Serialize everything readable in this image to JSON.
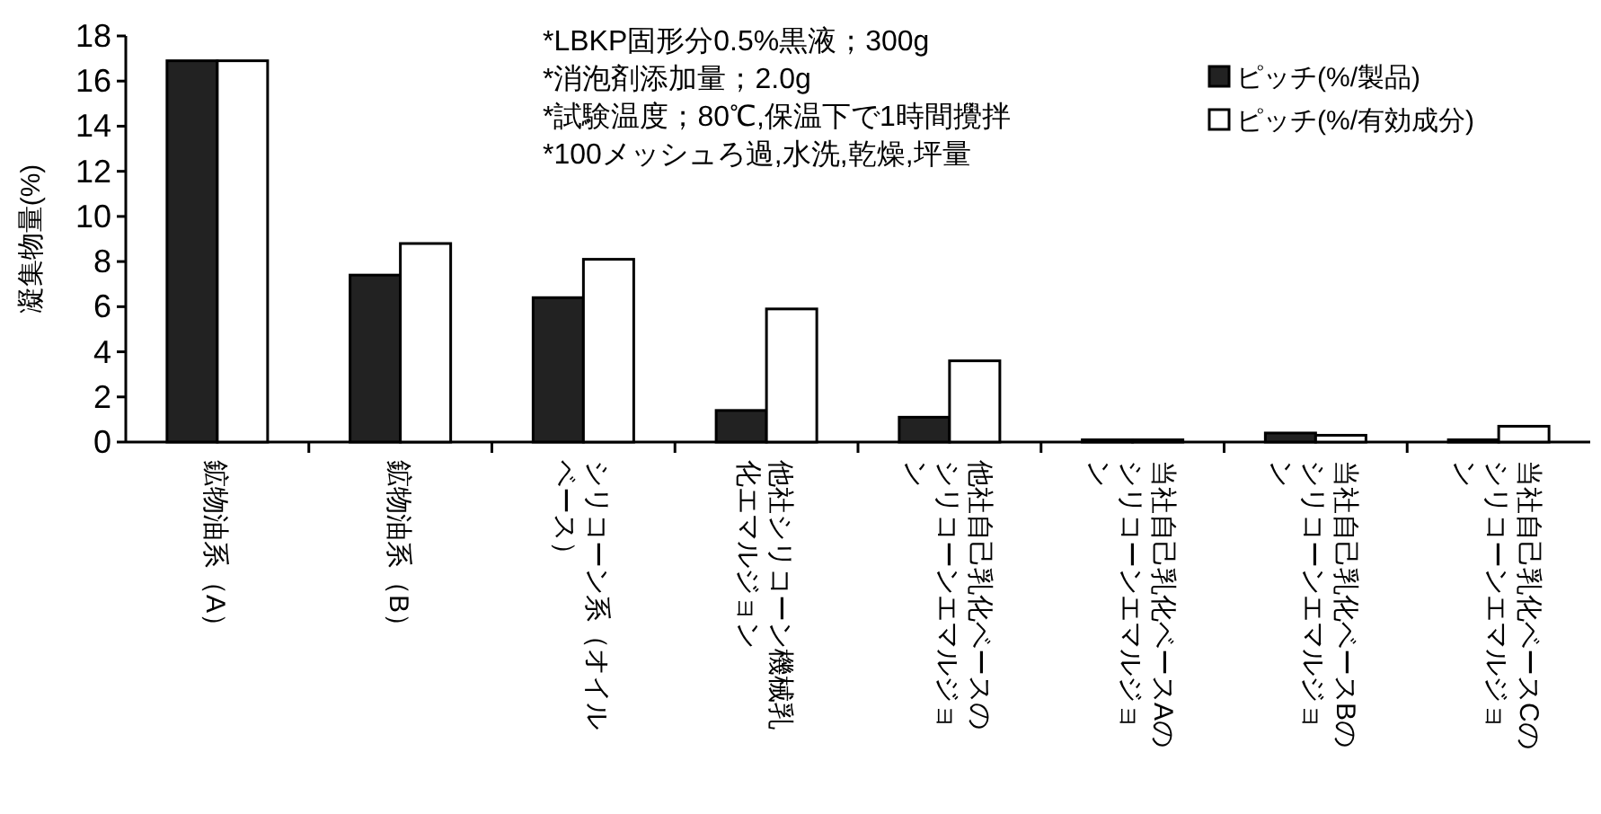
{
  "chart_data": {
    "type": "bar",
    "ylabel": "凝集物量(%)",
    "categories": [
      "鉱物油系（A）",
      "鉱物油系（B）",
      "シリコーン系（オイルベース）",
      "他社シリコーン機械乳化エマルジョン",
      "他社自己乳化ベースのシリコーンエマルジョン",
      "当社自己乳化ベースAのシリコーンエマルジョン",
      "当社自己乳化ベースBのシリコーンエマルジョン",
      "当社自己乳化ベースCのシリコーンエマルジョン"
    ],
    "series": [
      {
        "name": "ピッチ(%/製品)",
        "color": "#222222",
        "values": [
          16.9,
          7.4,
          6.4,
          1.4,
          1.1,
          0.1,
          0.4,
          0.1
        ]
      },
      {
        "name": "ピッチ(%/有効成分)",
        "color": "#ffffff",
        "values": [
          16.9,
          8.8,
          8.1,
          5.9,
          3.6,
          0.1,
          0.3,
          0.7
        ]
      }
    ],
    "ylim": [
      0,
      18
    ],
    "yticks": [
      0,
      2,
      4,
      6,
      8,
      10,
      12,
      14,
      16,
      18
    ],
    "grid": false,
    "legend": "top right",
    "annotations": [
      "*LBKP固形分0.5%黒液；300g",
      "*消泡剤添加量；2.0g",
      "*試験温度；80℃,保温下で1時間攪拌",
      "*100メッシュろ過,水洗,乾燥,坪量"
    ]
  }
}
